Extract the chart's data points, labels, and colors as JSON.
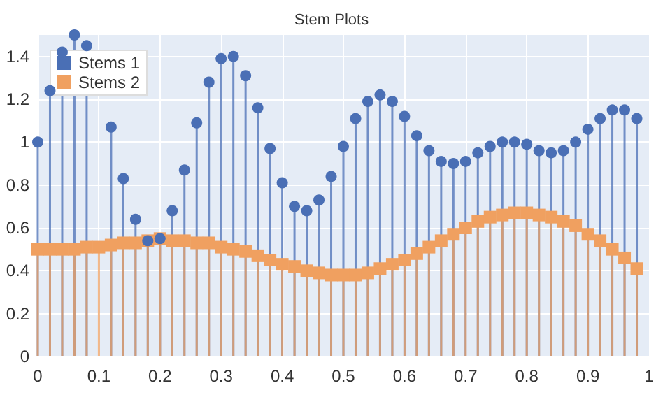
{
  "chart_data": {
    "type": "lollipop",
    "title": "Stem Plots",
    "x": [
      0,
      0.02,
      0.04,
      0.06,
      0.08,
      0.1,
      0.12,
      0.14,
      0.16,
      0.18,
      0.2,
      0.22,
      0.24,
      0.26,
      0.28,
      0.3,
      0.32,
      0.34,
      0.36,
      0.38,
      0.4,
      0.42,
      0.44,
      0.46,
      0.48,
      0.5,
      0.52,
      0.54,
      0.56,
      0.58,
      0.6,
      0.62,
      0.64,
      0.66,
      0.68,
      0.7,
      0.72,
      0.74,
      0.76,
      0.78,
      0.8,
      0.82,
      0.84,
      0.86,
      0.88,
      0.9,
      0.92,
      0.94,
      0.96,
      0.98
    ],
    "series": [
      {
        "name": "Stems 1",
        "color": "#4a6fb5",
        "marker": "circle",
        "values": [
          1.0,
          1.24,
          1.42,
          1.5,
          1.45,
          null,
          1.07,
          0.83,
          0.64,
          0.54,
          0.55,
          0.68,
          0.87,
          1.09,
          1.28,
          1.39,
          1.4,
          1.31,
          1.16,
          0.97,
          0.81,
          0.7,
          0.68,
          0.73,
          0.84,
          0.98,
          1.11,
          1.19,
          1.22,
          1.19,
          1.12,
          1.03,
          0.96,
          0.91,
          0.9,
          0.91,
          0.95,
          0.98,
          1.0,
          1.0,
          0.99,
          0.96,
          0.95,
          0.96,
          1.0,
          1.06,
          1.11,
          1.15,
          1.15,
          1.11
        ]
      },
      {
        "name": "Stems 2",
        "color": "#f0a060",
        "marker": "square",
        "values": [
          0.5,
          0.5,
          0.5,
          0.5,
          0.51,
          0.51,
          0.52,
          0.53,
          0.53,
          0.54,
          0.55,
          0.54,
          0.54,
          0.53,
          0.53,
          0.51,
          0.5,
          0.49,
          0.47,
          0.45,
          0.43,
          0.42,
          0.4,
          0.39,
          0.38,
          0.38,
          0.38,
          0.39,
          0.41,
          0.43,
          0.45,
          0.48,
          0.51,
          0.54,
          0.57,
          0.6,
          0.63,
          0.65,
          0.66,
          0.67,
          0.67,
          0.66,
          0.65,
          0.63,
          0.61,
          0.57,
          0.54,
          0.5,
          0.46,
          0.41
        ]
      }
    ],
    "xlim": [
      0,
      1
    ],
    "xticks": [
      0,
      0.1,
      0.2,
      0.3,
      0.4,
      0.5,
      0.6,
      0.7,
      0.8,
      0.9,
      1
    ],
    "ylim": [
      0,
      1.5
    ],
    "yticks": [
      0,
      0.2,
      0.4,
      0.6,
      0.8,
      1,
      1.2,
      1.4
    ],
    "grid": true,
    "legend": "top left"
  }
}
